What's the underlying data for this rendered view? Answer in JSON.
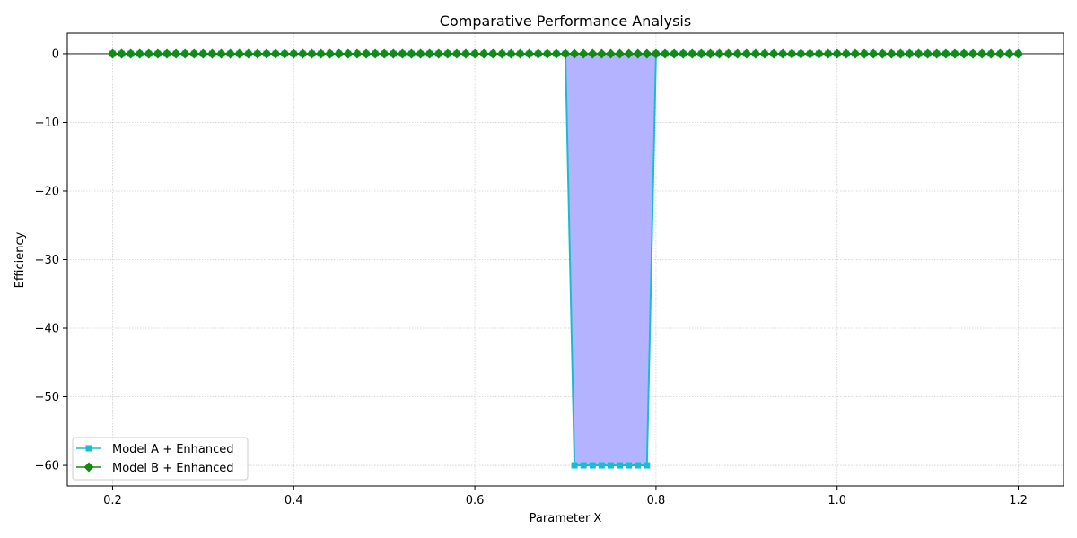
{
  "chart_data": {
    "type": "line",
    "title": "Comparative Performance Analysis",
    "xlabel": "Parameter X",
    "ylabel": "Efficiency",
    "xlim": [
      0.15,
      1.25
    ],
    "ylim": [
      -63,
      3
    ],
    "xticks": [
      0.2,
      0.4,
      0.6,
      0.8,
      1.0,
      1.2
    ],
    "xtick_labels": [
      "0.2",
      "0.4",
      "0.6",
      "0.8",
      "1.0",
      "1.2"
    ],
    "yticks": [
      0,
      -10,
      -20,
      -30,
      -40,
      -50,
      -60
    ],
    "ytick_labels": [
      "0",
      "−10",
      "−20",
      "−30",
      "−40",
      "−50",
      "−60"
    ],
    "grid": true,
    "zero_line": true,
    "legend_position": "lower-left",
    "series": [
      {
        "name": "Model A + Enhanced",
        "color": "#17becf",
        "marker": "square",
        "x_range": [
          0.2,
          1.2
        ],
        "x_step": 0.01,
        "default_y": 0,
        "dip": {
          "x_from": 0.71,
          "x_to": 0.79,
          "y": -60
        },
        "fill_to_zero": true,
        "fill_color": "#b3b3ff"
      },
      {
        "name": "Model B + Enhanced",
        "color": "#138a13",
        "marker": "diamond",
        "x_range": [
          0.2,
          1.2
        ],
        "x_step": 0.01,
        "default_y": 0
      }
    ]
  }
}
